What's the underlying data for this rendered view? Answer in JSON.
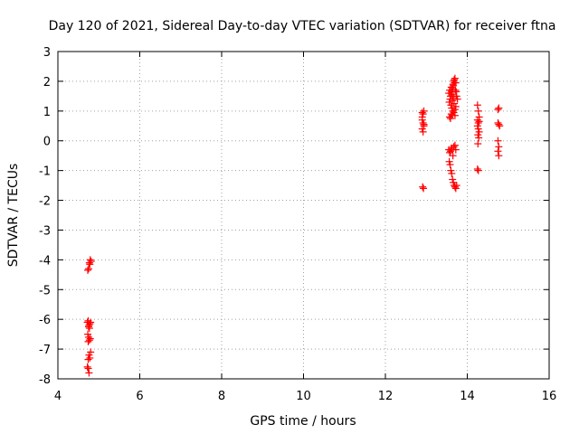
{
  "chart_data": {
    "type": "scatter",
    "title": "Day 120 of 2021, Sidereal Day-to-day VTEC variation (SDTVAR) for receiver ftna",
    "xlabel": "GPS time / hours",
    "ylabel": "SDTVAR / TECUs",
    "xlim": [
      4,
      16
    ],
    "ylim": [
      -8,
      3
    ],
    "xticks": [
      4,
      6,
      8,
      10,
      12,
      14,
      16
    ],
    "yticks": [
      -8,
      -7,
      -6,
      -5,
      -4,
      -3,
      -2,
      -1,
      0,
      1,
      2,
      3
    ],
    "grid": true,
    "marker": "+",
    "series": [
      {
        "color": "#ff0000",
        "points": [
          [
            4.73,
            -4.35
          ],
          [
            4.75,
            -4.3
          ],
          [
            4.77,
            -4.1
          ],
          [
            4.79,
            -4.0
          ],
          [
            4.81,
            -4.05
          ],
          [
            4.78,
            -4.15
          ],
          [
            4.72,
            -6.1
          ],
          [
            4.74,
            -6.05
          ],
          [
            4.76,
            -6.2
          ],
          [
            4.78,
            -6.15
          ],
          [
            4.8,
            -6.1
          ],
          [
            4.77,
            -6.3
          ],
          [
            4.75,
            -6.25
          ],
          [
            4.73,
            -6.5
          ],
          [
            4.75,
            -6.6
          ],
          [
            4.77,
            -6.7
          ],
          [
            4.79,
            -6.65
          ],
          [
            4.74,
            -6.75
          ],
          [
            4.76,
            -7.2
          ],
          [
            4.78,
            -7.3
          ],
          [
            4.8,
            -7.1
          ],
          [
            4.74,
            -7.35
          ],
          [
            4.72,
            -7.6
          ],
          [
            4.74,
            -7.65
          ],
          [
            4.76,
            -7.8
          ],
          [
            12.9,
            0.95
          ],
          [
            12.92,
            0.9
          ],
          [
            12.94,
            1.0
          ],
          [
            12.9,
            0.7
          ],
          [
            12.92,
            0.6
          ],
          [
            12.94,
            0.5
          ],
          [
            12.9,
            0.4
          ],
          [
            12.92,
            0.3
          ],
          [
            12.94,
            0.55
          ],
          [
            12.9,
            0.8
          ],
          [
            12.91,
            -1.55
          ],
          [
            12.93,
            -1.6
          ],
          [
            13.55,
            1.6
          ],
          [
            13.57,
            1.7
          ],
          [
            13.59,
            1.5
          ],
          [
            13.61,
            1.8
          ],
          [
            13.63,
            1.55
          ],
          [
            13.65,
            1.9
          ],
          [
            13.67,
            2.0
          ],
          [
            13.69,
            1.95
          ],
          [
            13.71,
            1.7
          ],
          [
            13.73,
            1.65
          ],
          [
            13.56,
            1.3
          ],
          [
            13.58,
            1.4
          ],
          [
            13.6,
            1.2
          ],
          [
            13.62,
            1.1
          ],
          [
            13.64,
            1.35
          ],
          [
            13.66,
            1.45
          ],
          [
            13.68,
            1.25
          ],
          [
            13.7,
            1.05
          ],
          [
            13.72,
            1.15
          ],
          [
            13.57,
            0.8
          ],
          [
            13.59,
            0.75
          ],
          [
            13.61,
            0.9
          ],
          [
            13.63,
            0.85
          ],
          [
            13.65,
            1.0
          ],
          [
            13.67,
            0.95
          ],
          [
            13.7,
            0.85
          ],
          [
            13.6,
            1.6
          ],
          [
            13.62,
            1.65
          ],
          [
            13.64,
            1.75
          ],
          [
            13.66,
            1.85
          ],
          [
            13.68,
            2.05
          ],
          [
            13.7,
            2.1
          ],
          [
            13.72,
            1.95
          ],
          [
            13.74,
            1.5
          ],
          [
            13.76,
            1.4
          ],
          [
            13.55,
            -0.3
          ],
          [
            13.57,
            -0.4
          ],
          [
            13.59,
            -0.35
          ],
          [
            13.61,
            -0.25
          ],
          [
            13.63,
            -0.3
          ],
          [
            13.65,
            -0.5
          ],
          [
            13.67,
            -0.2
          ],
          [
            13.7,
            -0.15
          ],
          [
            13.72,
            -0.3
          ],
          [
            13.56,
            -0.7
          ],
          [
            13.58,
            -0.8
          ],
          [
            13.6,
            -1.0
          ],
          [
            13.62,
            -1.1
          ],
          [
            13.64,
            -1.3
          ],
          [
            13.66,
            -1.4
          ],
          [
            13.68,
            -1.5
          ],
          [
            13.7,
            -1.55
          ],
          [
            13.72,
            -1.6
          ],
          [
            13.74,
            -1.5
          ],
          [
            14.25,
            1.2
          ],
          [
            14.27,
            1.0
          ],
          [
            14.29,
            0.8
          ],
          [
            14.25,
            0.7
          ],
          [
            14.27,
            0.6
          ],
          [
            14.29,
            0.65
          ],
          [
            14.25,
            0.5
          ],
          [
            14.27,
            0.4
          ],
          [
            14.29,
            0.3
          ],
          [
            14.26,
            0.2
          ],
          [
            14.28,
            0.1
          ],
          [
            14.26,
            -0.1
          ],
          [
            14.25,
            -0.95
          ],
          [
            14.27,
            -1.0
          ],
          [
            14.75,
            1.05
          ],
          [
            14.77,
            1.1
          ],
          [
            14.75,
            0.6
          ],
          [
            14.77,
            0.55
          ],
          [
            14.79,
            0.5
          ],
          [
            14.75,
            0.0
          ],
          [
            14.77,
            -0.2
          ],
          [
            14.75,
            -0.35
          ],
          [
            14.77,
            -0.5
          ]
        ]
      }
    ]
  }
}
